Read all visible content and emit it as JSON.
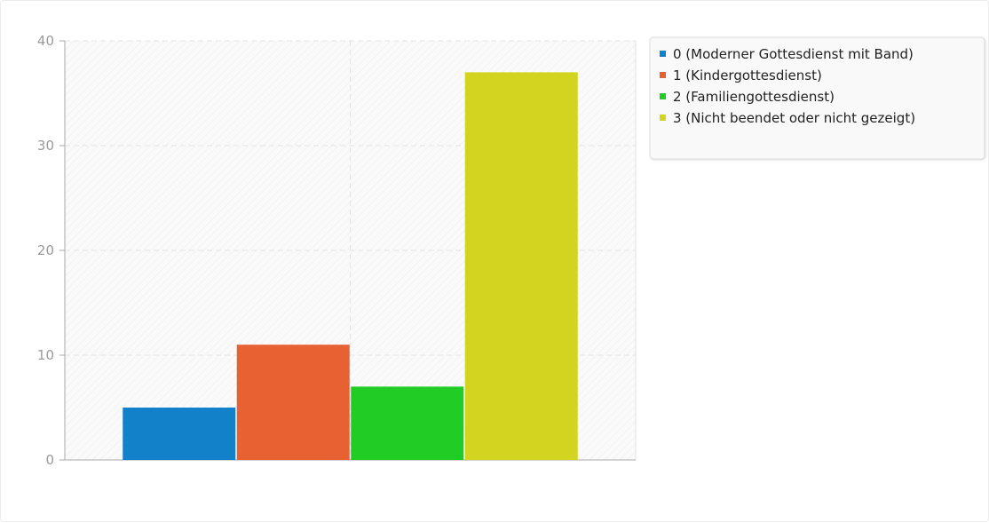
{
  "chart_data": {
    "type": "bar",
    "title": "",
    "xlabel": "",
    "ylabel": "",
    "ylim": [
      0,
      40
    ],
    "yticks": [
      0,
      10,
      20,
      30,
      40
    ],
    "grid": true,
    "legend_position": "top-right",
    "series": [
      {
        "name": "0 (Moderner Gottesdienst mit Band)",
        "value": 5,
        "color": "#1281c9"
      },
      {
        "name": "1 (Kindergottesdienst)",
        "value": 11,
        "color": "#e86133"
      },
      {
        "name": "2 (Familiengottesdienst)",
        "value": 7,
        "color": "#21cc25"
      },
      {
        "name": "3 (Nicht beendet oder nicht gezeigt)",
        "value": 37,
        "color": "#d3d41f"
      }
    ]
  }
}
